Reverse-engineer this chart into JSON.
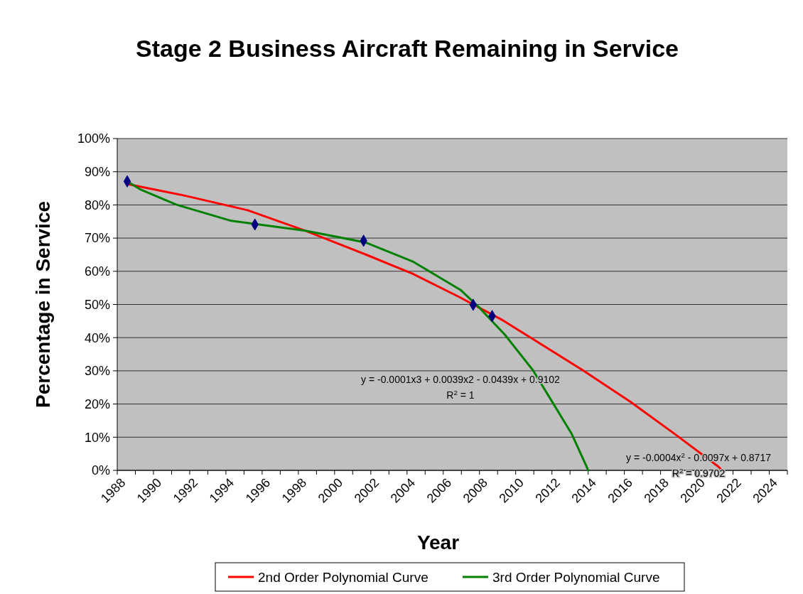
{
  "chart_data": {
    "type": "line",
    "title": "Stage 2 Business Aircraft Remaining in Service",
    "xlabel": "Year",
    "ylabel": "Percentage in Service",
    "xlim": [
      1988,
      2025
    ],
    "xticks": [
      1988,
      {
        "value": 1989,
        "label": null
      },
      1990,
      {
        "value": 1991,
        "label": null
      },
      1992,
      {
        "value": 1993,
        "label": null
      },
      1994,
      {
        "value": 1995,
        "label": null
      },
      1996,
      {
        "value": 1997,
        "label": null
      },
      1998,
      {
        "value": 1999,
        "label": null
      },
      2000,
      {
        "value": 2001,
        "label": null
      },
      2002,
      {
        "value": 2003,
        "label": null
      },
      2004,
      {
        "value": 2005,
        "label": null
      },
      2006,
      {
        "value": 2007,
        "label": null
      },
      2008,
      {
        "value": 2009,
        "label": null
      },
      2010,
      {
        "value": 2011,
        "label": null
      },
      2012,
      {
        "value": 2013,
        "label": null
      },
      2014,
      {
        "value": 2015,
        "label": null
      },
      2016,
      {
        "value": 2017,
        "label": null
      },
      2018,
      {
        "value": 2019,
        "label": null
      },
      2020,
      {
        "value": 2021,
        "label": null
      },
      2022,
      {
        "value": 2023,
        "label": null
      },
      2024,
      {
        "value": 2025,
        "label": null
      }
    ],
    "ylim": [
      0,
      100
    ],
    "yticks": [
      {
        "value": 0,
        "label": "0%"
      },
      {
        "value": 10,
        "label": "10%"
      },
      {
        "value": 20,
        "label": "20%"
      },
      {
        "value": 30,
        "label": "30%"
      },
      {
        "value": 40,
        "label": "40%"
      },
      {
        "value": 50,
        "label": "50%"
      },
      {
        "value": 60,
        "label": "60%"
      },
      {
        "value": 70,
        "label": "70%"
      },
      {
        "value": 80,
        "label": "80%"
      },
      {
        "value": 90,
        "label": "90%"
      },
      {
        "value": 100,
        "label": "100%"
      }
    ],
    "grid": "y",
    "legend": "bottom",
    "series": [
      {
        "name": "2nd Order Polynomial Curve",
        "color": "#ff0000",
        "marker": "none",
        "x": [
          1988.55,
          1991.65,
          1995.2,
          1998.4,
          2001.7,
          2004.3,
          2006.9,
          2009.3,
          2013.7,
          2016.35,
          2018.8,
          2021.15,
          2021.4
        ],
        "values": [
          86.3,
          82.9,
          78.4,
          72.2,
          65.1,
          59.3,
          52.2,
          45.2,
          30.2,
          20.6,
          10.9,
          1.3,
          0
        ]
      },
      {
        "name": "3rd Order Polynomial Curve",
        "color": "#008000",
        "marker": "none",
        "x": [
          1988.55,
          1989.3,
          1991.25,
          1994.3,
          1998.4,
          2001.7,
          2004.3,
          2006.95,
          2008,
          2009.4,
          2010.95,
          2012,
          2013.1,
          2013.9,
          2014
        ],
        "values": [
          87.1,
          84.6,
          80.1,
          75.2,
          72.2,
          68.7,
          63,
          54.4,
          49,
          40.9,
          30.2,
          20.8,
          10.9,
          1.3,
          0
        ]
      },
      {
        "color": "#000080",
        "type": "scatter",
        "marker": "diamond",
        "x": [
          1988.55,
          1995.6,
          2001.6,
          2007.65,
          2008.7
        ],
        "values": [
          87.1,
          74.1,
          69.2,
          49.9,
          46.5
        ]
      }
    ],
    "annotations": [
      "y = -0.0001x3 + 0.0039x2 - 0.0439x + 0.9102\nR$^{2}$ = 1",
      "y = -0.0004x$^{2}$ - 0.0097x + 0.8717\nR$^{2}$ = 0.9702"
    ]
  }
}
